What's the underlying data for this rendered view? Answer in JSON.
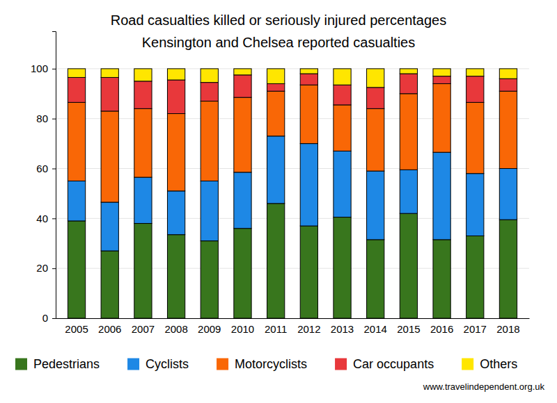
{
  "chart_data": {
    "type": "bar",
    "stacked": true,
    "title": "Road casualties killed or seriously injured percentages",
    "subtitle": "Kensington and Chelsea reported casualties",
    "annotations": [
      "www.travelindependent.org.uk"
    ],
    "categories": [
      "2005",
      "2006",
      "2007",
      "2008",
      "2009",
      "2010",
      "2011",
      "2012",
      "2013",
      "2014",
      "2015",
      "2016",
      "2017",
      "2018"
    ],
    "series": [
      {
        "name": "Pedestrians",
        "color": "#38761d",
        "values": [
          39,
          27,
          38,
          33.5,
          31,
          36,
          46,
          37,
          40.5,
          31.5,
          42,
          31.5,
          33,
          39.5
        ]
      },
      {
        "name": "Cyclists",
        "color": "#1e88e5",
        "values": [
          16,
          19.5,
          18.5,
          17.5,
          24,
          22.5,
          27,
          33,
          26.5,
          27.5,
          17.5,
          35,
          25,
          20.5
        ]
      },
      {
        "name": "Motorcyclists",
        "color": "#f96706",
        "values": [
          31.5,
          36.5,
          27.5,
          31,
          32,
          30,
          18,
          23.5,
          18.5,
          25,
          30.5,
          27.5,
          28.5,
          31
        ]
      },
      {
        "name": "Car occupants",
        "color": "#e8383b",
        "values": [
          10,
          13.5,
          11,
          13.5,
          7.5,
          9,
          3,
          4.5,
          8,
          8.5,
          8,
          3,
          10.5,
          5
        ]
      },
      {
        "name": "Others",
        "color": "#ffe600",
        "values": [
          3.5,
          3.5,
          5,
          4.5,
          5.5,
          2.5,
          6,
          2,
          6.5,
          7.5,
          2,
          3,
          3,
          4
        ]
      }
    ],
    "ylim": [
      0,
      115
    ],
    "yticks": [
      0,
      20,
      40,
      60,
      80,
      100
    ],
    "grid": true,
    "legend": "bottom"
  }
}
